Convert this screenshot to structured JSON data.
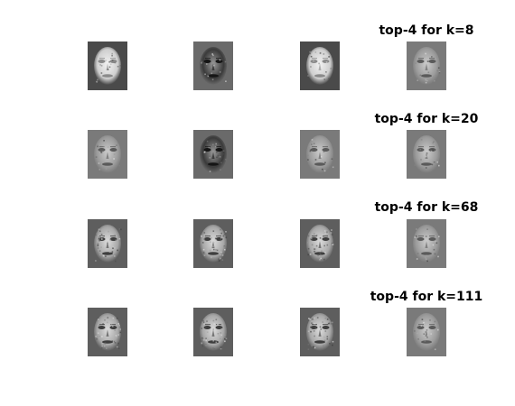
{
  "rows": [
    {
      "title": "top-4 for k=8",
      "tones": [
        "light",
        "dark",
        "light",
        "mid"
      ]
    },
    {
      "title": "top-4 for k=20",
      "tones": [
        "mid",
        "dark",
        "mid",
        "mid"
      ]
    },
    {
      "title": "top-4 for k=68",
      "tones": [
        "detail",
        "detail",
        "detail",
        "mid"
      ]
    },
    {
      "title": "top-4 for k=111",
      "tones": [
        "detail",
        "detail",
        "detail",
        "mid"
      ]
    }
  ]
}
